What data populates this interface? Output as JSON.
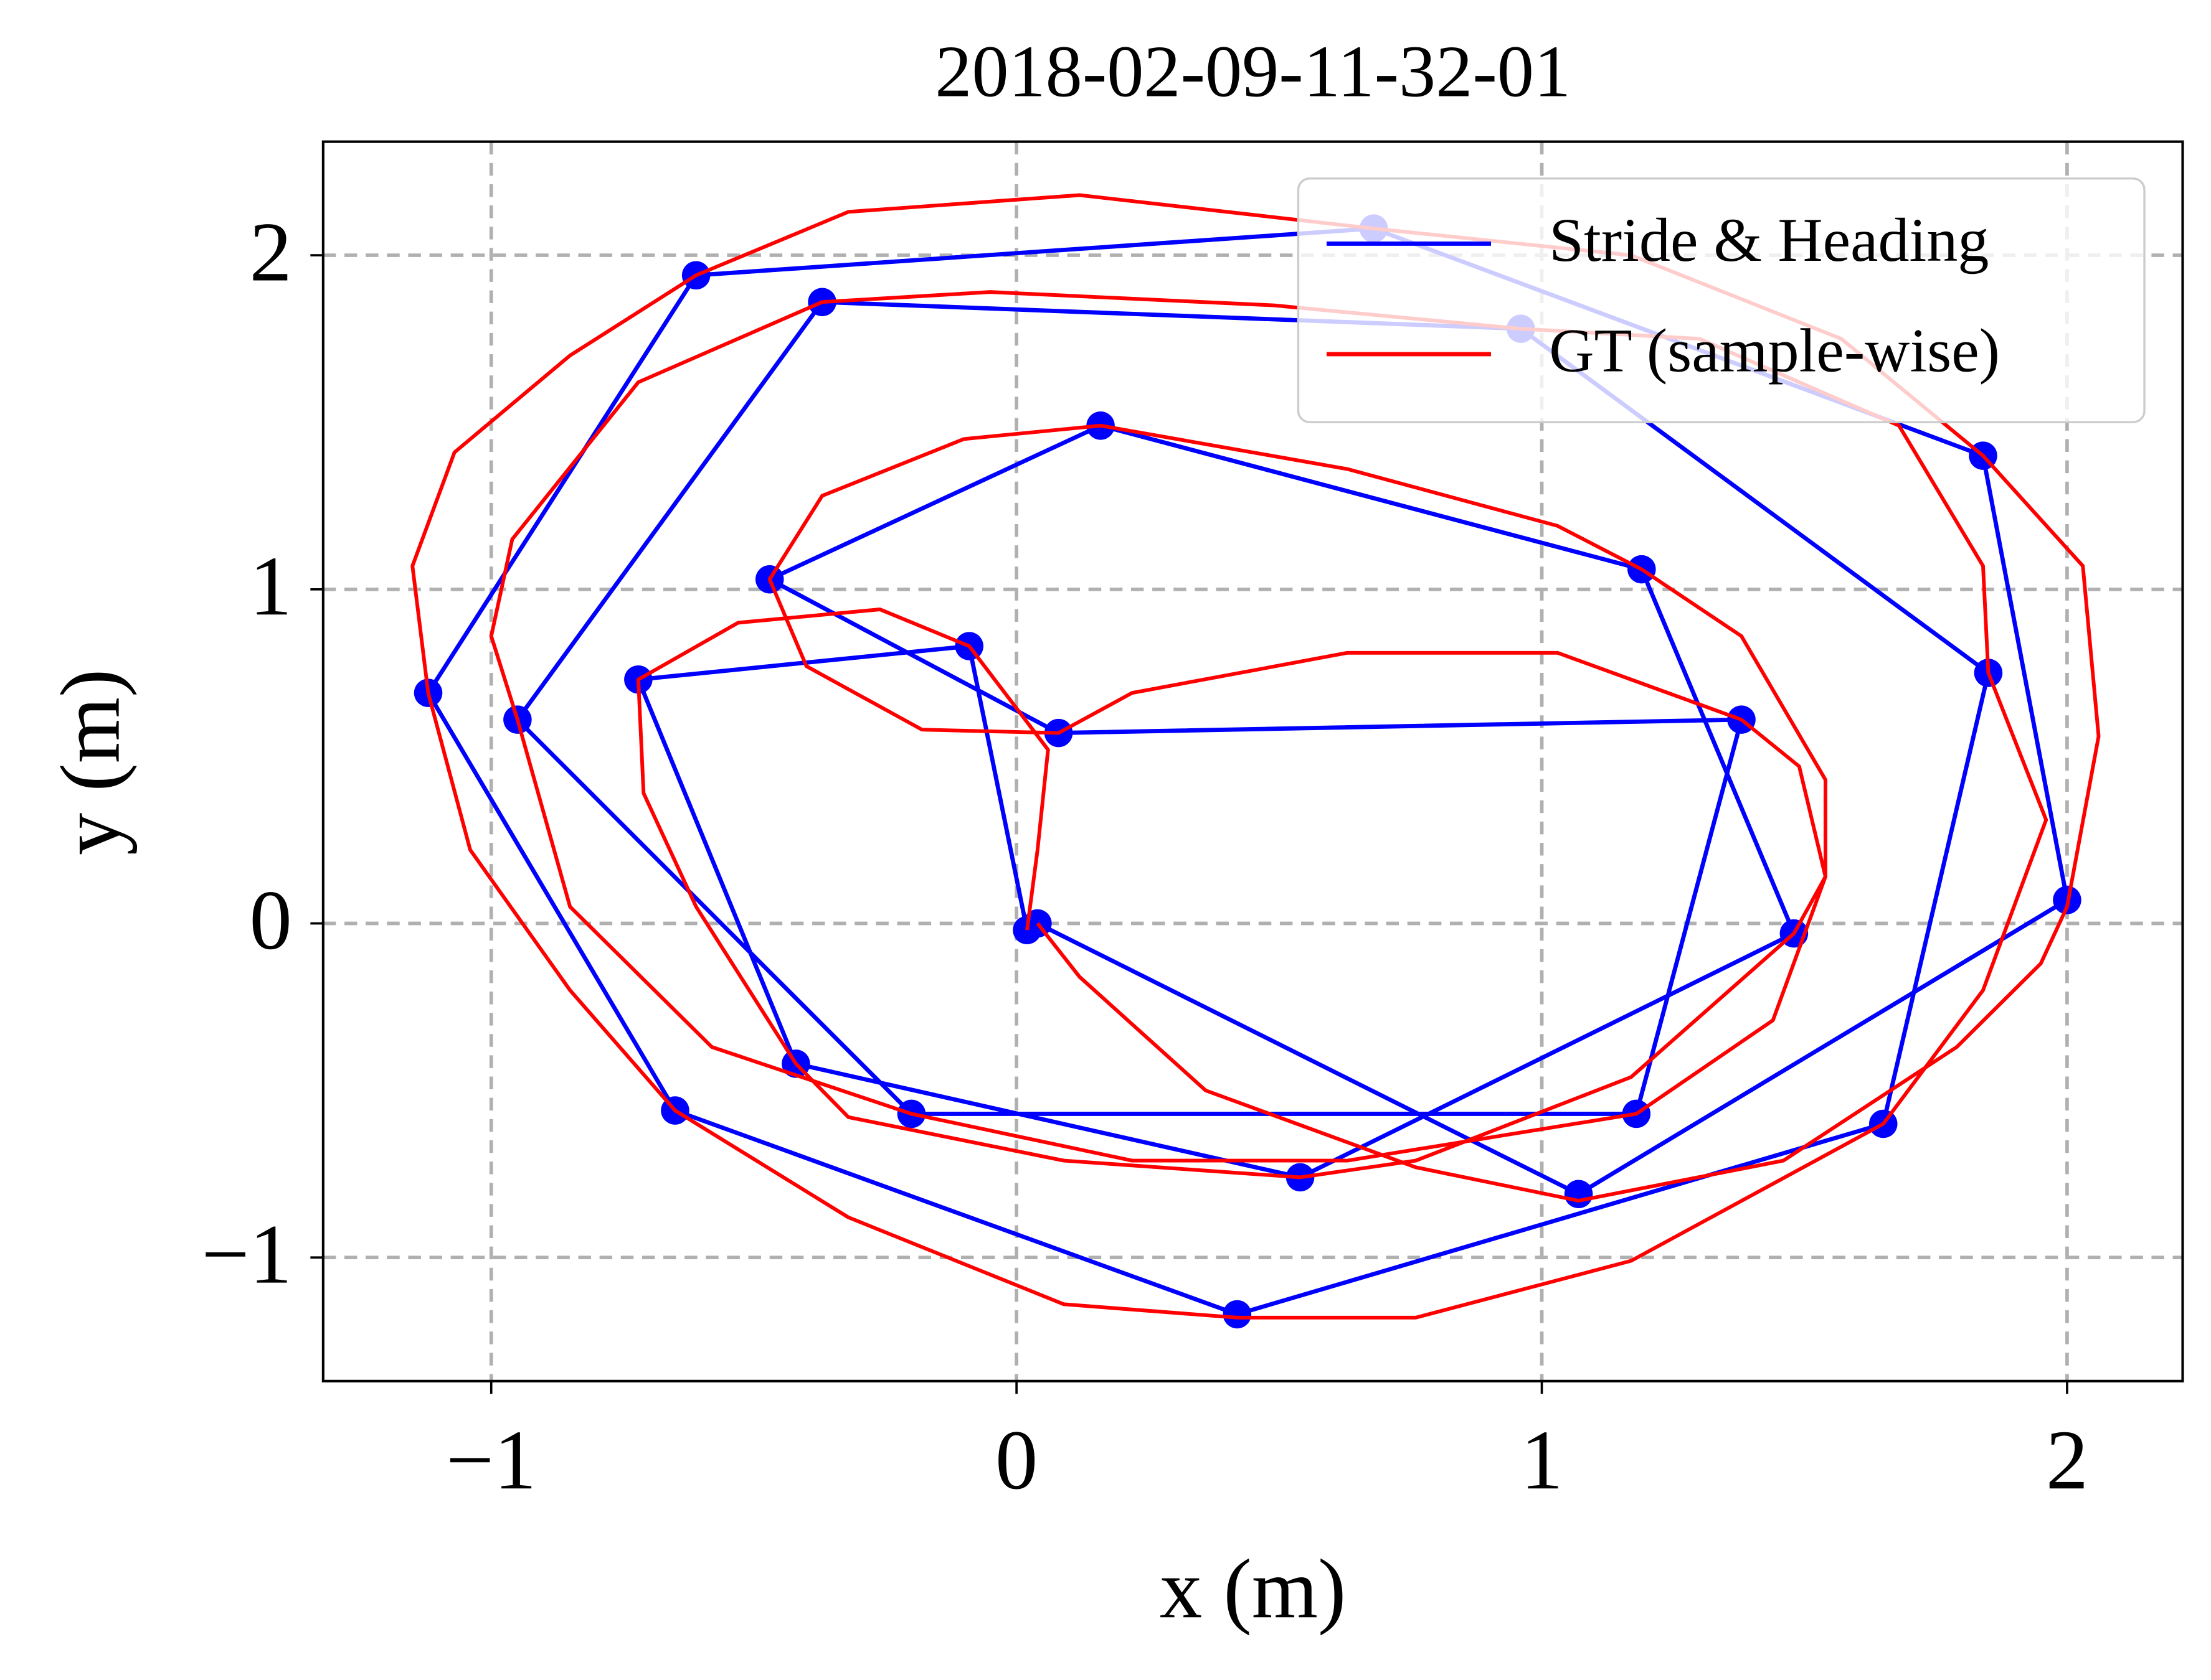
{
  "chart_data": {
    "type": "line",
    "title": "2018-02-09-11-32-01",
    "x_label": "x (m)",
    "y_label": "y (m)",
    "xlim": [
      -1.32,
      2.22
    ],
    "ylim": [
      -1.37,
      2.34
    ],
    "xticks": [
      {
        "value": -1,
        "label": "−1"
      },
      0,
      1,
      2
    ],
    "yticks": [
      {
        "value": -1,
        "label": "−1"
      },
      0,
      1,
      2
    ],
    "grid": true,
    "legend": "upper right",
    "series": [
      {
        "name": "Stride & Heading",
        "color": "#0000ff",
        "markers": true,
        "x": [
          0.04,
          1.07,
          2.0,
          1.84,
          0.68,
          -0.61,
          -1.12,
          -0.65,
          0.42,
          1.65,
          1.85,
          0.96,
          -0.37,
          -0.95,
          -0.2,
          1.18,
          1.38,
          0.08,
          -0.47,
          0.16,
          1.19,
          1.48,
          0.54,
          -0.42,
          -0.72,
          -0.09,
          0.02
        ],
        "y": [
          0.0,
          -0.81,
          0.07,
          1.4,
          2.08,
          1.94,
          0.69,
          -0.56,
          -1.17,
          -0.6,
          0.75,
          1.78,
          1.86,
          0.61,
          -0.57,
          -0.57,
          0.61,
          0.57,
          1.03,
          1.49,
          1.06,
          -0.03,
          -0.76,
          -0.42,
          0.73,
          0.83,
          -0.02
        ]
      },
      {
        "name": "GT (sample-wise)",
        "color": "#ff0000",
        "markers": false,
        "x": [
          0.04,
          0.12,
          0.36,
          0.76,
          1.07,
          1.46,
          1.79,
          1.95,
          2.0,
          2.06,
          2.03,
          1.84,
          1.57,
          1.17,
          0.68,
          0.12,
          -0.32,
          -0.61,
          -0.85,
          -1.07,
          -1.15,
          -1.12,
          -1.04,
          -0.85,
          -0.65,
          -0.32,
          0.09,
          0.42,
          0.76,
          1.17,
          1.65,
          1.84,
          1.96,
          1.85,
          1.84,
          1.68,
          1.3,
          0.96,
          0.49,
          -0.05,
          -0.37,
          -0.72,
          -0.96,
          -1.0,
          -0.95,
          -0.85,
          -0.58,
          -0.2,
          0.22,
          0.63,
          1.18,
          1.44,
          1.54,
          1.49,
          1.38,
          1.03,
          0.63,
          0.22,
          0.08,
          -0.18,
          -0.4,
          -0.47,
          -0.37,
          -0.1,
          0.16,
          0.63,
          1.03,
          1.19,
          1.38,
          1.54,
          1.54,
          1.48,
          1.17,
          0.76,
          0.54,
          0.09,
          -0.32,
          -0.42,
          -0.61,
          -0.71,
          -0.72,
          -0.53,
          -0.26,
          -0.09,
          0.06,
          0.04,
          0.02
        ],
        "y": [
          0.0,
          -0.16,
          -0.5,
          -0.73,
          -0.83,
          -0.71,
          -0.37,
          -0.12,
          0.05,
          0.56,
          1.07,
          1.4,
          1.75,
          2.0,
          2.08,
          2.18,
          2.13,
          1.94,
          1.7,
          1.41,
          1.07,
          0.69,
          0.22,
          -0.2,
          -0.56,
          -0.88,
          -1.14,
          -1.18,
          -1.18,
          -1.01,
          -0.6,
          -0.2,
          0.31,
          0.75,
          1.07,
          1.49,
          1.75,
          1.78,
          1.85,
          1.89,
          1.86,
          1.62,
          1.15,
          0.86,
          0.61,
          0.05,
          -0.37,
          -0.57,
          -0.71,
          -0.71,
          -0.57,
          -0.29,
          0.14,
          0.47,
          0.61,
          0.81,
          0.81,
          0.69,
          0.57,
          0.58,
          0.77,
          1.03,
          1.28,
          1.45,
          1.49,
          1.36,
          1.19,
          1.06,
          0.86,
          0.43,
          0.14,
          -0.03,
          -0.46,
          -0.71,
          -0.76,
          -0.71,
          -0.58,
          -0.42,
          0.05,
          0.39,
          0.73,
          0.9,
          0.94,
          0.83,
          0.52,
          0.22,
          -0.02
        ]
      }
    ]
  }
}
